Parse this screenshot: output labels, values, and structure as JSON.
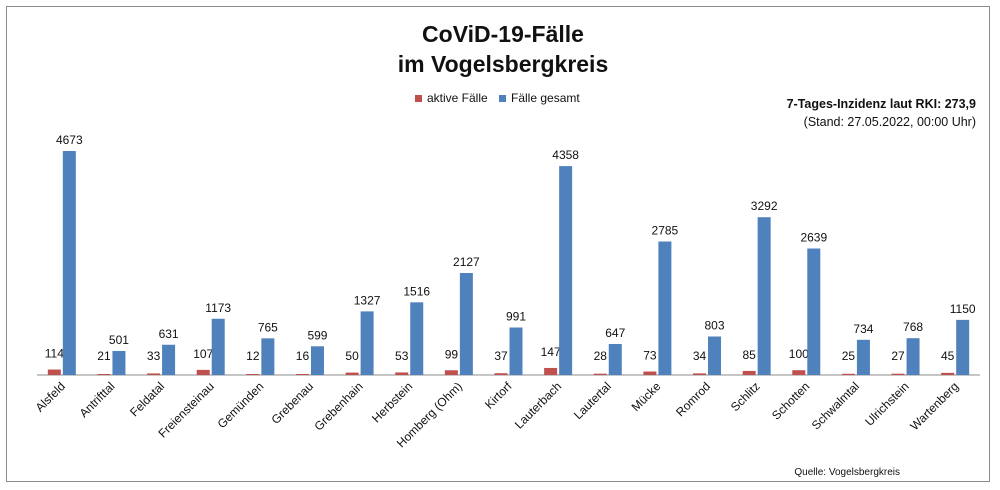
{
  "chart_data": {
    "type": "bar",
    "title_line1": "CoViD-19-Fälle",
    "title_line2": "im Vogelsbergkreis",
    "categories": [
      "Alsfeld",
      "Antrifttal",
      "Feldatal",
      "Freiensteinau",
      "Gemünden",
      "Grebenau",
      "Grebenhain",
      "Herbstein",
      "Homberg (Ohm)",
      "Kirtorf",
      "Lauterbach",
      "Lautertal",
      "Mücke",
      "Romrod",
      "Schlitz",
      "Schotten",
      "Schwalmtal",
      "Ulrichstein",
      "Wartenberg"
    ],
    "series": [
      {
        "name": "aktive Fälle",
        "color": "#c0504d",
        "values": [
          114,
          21,
          33,
          107,
          12,
          16,
          50,
          53,
          99,
          37,
          147,
          28,
          73,
          34,
          85,
          100,
          25,
          27,
          45
        ]
      },
      {
        "name": "Fälle gesamt",
        "color": "#4f81bd",
        "values": [
          4673,
          501,
          631,
          1173,
          765,
          599,
          1327,
          1516,
          2127,
          991,
          4358,
          647,
          2785,
          803,
          3292,
          2639,
          734,
          768,
          1150
        ]
      }
    ],
    "ylim": [
      0,
      4800
    ],
    "legend_position": "top",
    "grid": false,
    "incidence_label": "7-Tages-Inzidenz laut RKI: 273,9",
    "date_label": "(Stand: 27.05.2022, 00:00 Uhr)",
    "source_label": "Quelle: Vogelsbergkreis"
  }
}
